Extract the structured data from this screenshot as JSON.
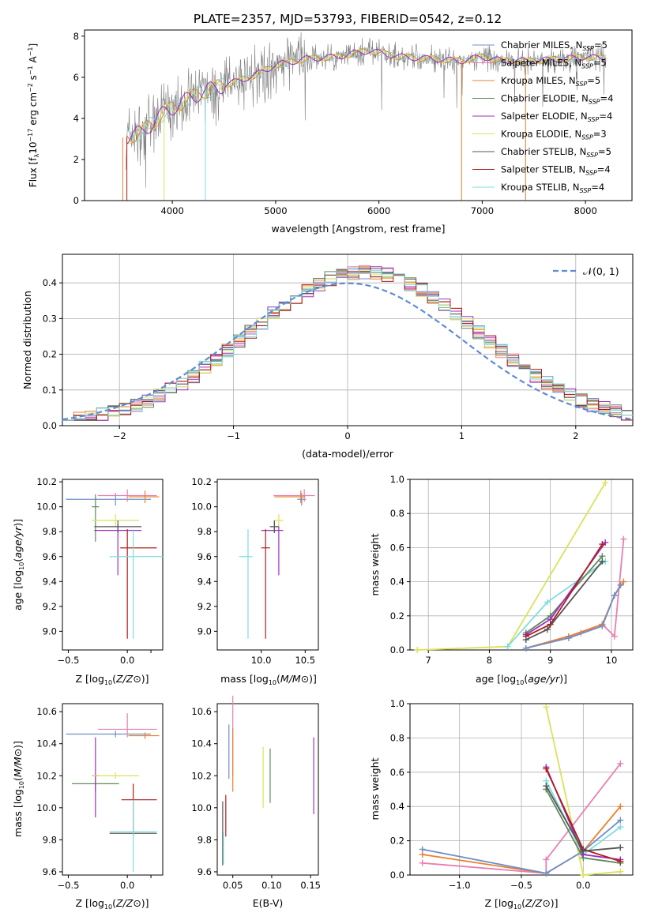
{
  "title": "PLATE=2357, MJD=53793, FIBERID=0542, z=0.12",
  "models": [
    {
      "name": "Chabrier MILES",
      "nssp": "5",
      "color": "#6f8fc8"
    },
    {
      "name": "Salpeter MILES",
      "nssp": "5",
      "color": "#e87fb0"
    },
    {
      "name": "Kroupa MILES",
      "nssp": "5",
      "color": "#e8802c"
    },
    {
      "name": "Chabrier ELODIE",
      "nssp": "4",
      "color": "#5d8a5b"
    },
    {
      "name": "Salpeter ELODIE",
      "nssp": "4",
      "color": "#9b30c0"
    },
    {
      "name": "Kroupa ELODIE",
      "nssp": "3",
      "color": "#d9e35a"
    },
    {
      "name": "Chabrier STELIB",
      "nssp": "5",
      "color": "#555555"
    },
    {
      "name": "Salpeter STELIB",
      "nssp": "4",
      "color": "#b01c1c"
    },
    {
      "name": "Kroupa STELIB",
      "nssp": "4",
      "color": "#7fdcdc"
    }
  ],
  "nssp_prefix": "N",
  "nssp_sub": "SSP",
  "chart_data": [
    {
      "id": "spectrum",
      "type": "line",
      "xlabel": "wavelength [Angstrom, rest frame]",
      "ylabel_parts": [
        "Flux [f",
        "λ",
        "10",
        "−17",
        " erg cm",
        "−2",
        " s",
        "−1",
        " A",
        "−1",
        "]"
      ],
      "xlim": [
        3150,
        8450
      ],
      "ylim": [
        0,
        8.3
      ],
      "xticks": [
        4000,
        5000,
        6000,
        7000,
        8000
      ],
      "yticks": [
        0,
        2,
        4,
        6,
        8
      ],
      "continuum_x": [
        3550,
        3700,
        3900,
        4100,
        4300,
        4500,
        4800,
        5000,
        5300,
        5600,
        5900,
        6200,
        6500,
        6800,
        7000,
        7200,
        7500,
        7800,
        8000,
        8200
      ],
      "continuum_y": [
        3.1,
        3.3,
        4.2,
        4.8,
        5.3,
        5.6,
        6.1,
        6.6,
        6.9,
        7.0,
        7.3,
        7.0,
        6.9,
        6.8,
        7.0,
        6.8,
        6.8,
        6.9,
        7.0,
        6.9
      ]
    },
    {
      "id": "residuals",
      "type": "histogram",
      "xlabel": "(data-model)/error",
      "ylabel": "Normed distribution",
      "xlim": [
        -2.5,
        2.5
      ],
      "ylim": [
        0,
        0.48
      ],
      "xticks": [
        -2,
        -1,
        0,
        1,
        2
      ],
      "xtick_labels": [
        "−2",
        "−1",
        "0",
        "1",
        "2"
      ],
      "yticks": [
        0,
        0.1,
        0.2,
        0.3,
        0.4
      ],
      "ytick_labels": [
        "0.0",
        "0.1",
        "0.2",
        "0.3",
        "0.4"
      ],
      "gaussian_label": "𝒩(0, 1)",
      "grid": true,
      "legend": "top-right"
    },
    {
      "id": "age_vs_Z",
      "type": "errorbar",
      "xlabel": "Z [log10(Z/Z⊙)]",
      "ylabel": "age  [log10(age/yr)]",
      "xlim": [
        -0.55,
        0.3
      ],
      "ylim": [
        8.85,
        10.22
      ],
      "xticks": [
        -0.5,
        0,
        0.2
      ],
      "xtick_labels": [
        "−0.5",
        "0.0",
        ""
      ],
      "yticks": [
        9.0,
        9.2,
        9.4,
        9.6,
        9.8,
        10.0,
        10.2
      ],
      "ytick_labels": [
        "9.0",
        "9.2",
        "9.4",
        "9.6",
        "9.8",
        "10.0",
        "10.2"
      ],
      "points": [
        {
          "model": 0,
          "x": -0.1,
          "xerr": [
            0.42,
            0.3
          ],
          "y": 10.06,
          "yerr": [
            0.05,
            0.05
          ]
        },
        {
          "model": 1,
          "x": 0.0,
          "xerr": [
            0.25,
            0.25
          ],
          "y": 10.09,
          "yerr": [
            0.05,
            0.05
          ]
        },
        {
          "model": 2,
          "x": 0.15,
          "xerr": [
            0.14,
            0.12
          ],
          "y": 10.08,
          "yerr": [
            0.05,
            0.05
          ]
        },
        {
          "model": 3,
          "x": -0.27,
          "xerr": [
            0.03,
            0.03
          ],
          "y": 10.0,
          "yerr": [
            0.28,
            0.1
          ]
        },
        {
          "model": 4,
          "x": -0.08,
          "xerr": [
            0.2,
            0.2
          ],
          "y": 9.81,
          "yerr": [
            0.36,
            0.05
          ]
        },
        {
          "model": 5,
          "x": -0.1,
          "xerr": [
            0.2,
            0.2
          ],
          "y": 9.89,
          "yerr": [
            0.05,
            0.05
          ]
        },
        {
          "model": 6,
          "x": -0.08,
          "xerr": [
            0.2,
            0.2
          ],
          "y": 9.84,
          "yerr": [
            0.05,
            0.05
          ]
        },
        {
          "model": 7,
          "x": 0.0,
          "xerr": [
            0.06,
            0.25
          ],
          "y": 9.67,
          "yerr": [
            0.73,
            0.15
          ]
        },
        {
          "model": 8,
          "x": 0.05,
          "xerr": [
            0.2,
            0.25
          ],
          "y": 9.6,
          "yerr": [
            0.66,
            0.22
          ]
        }
      ]
    },
    {
      "id": "age_vs_mass",
      "type": "errorbar",
      "xlabel": "mass [log10(M/M⊙)]",
      "ylabel": "",
      "xlim": [
        9.5,
        10.65
      ],
      "ylim": [
        8.85,
        10.22
      ],
      "xticks": [
        10.0,
        10.5
      ],
      "xtick_labels": [
        "10.0",
        "10.5"
      ],
      "yticks": [
        9.0,
        9.2,
        9.4,
        9.6,
        9.8,
        10.0,
        10.2
      ],
      "ytick_labels": [
        "9.0",
        "9.2",
        "9.4",
        "9.6",
        "9.8",
        "10.0",
        "10.2"
      ],
      "points": [
        {
          "model": 0,
          "x": 10.46,
          "xerr": [
            0.05,
            0.05
          ],
          "y": 10.06,
          "yerr": [
            0.05,
            0.05
          ]
        },
        {
          "model": 1,
          "x": 10.49,
          "xerr": [
            0.35,
            0.12
          ],
          "y": 10.09,
          "yerr": [
            0.05,
            0.05
          ]
        },
        {
          "model": 2,
          "x": 10.45,
          "xerr": [
            0.3,
            0.05
          ],
          "y": 10.08,
          "yerr": [
            0.05,
            0.05
          ]
        },
        {
          "model": 3,
          "x": 10.15,
          "xerr": [
            0.05,
            0.05
          ],
          "y": 9.84,
          "yerr": [
            0.05,
            0.05
          ]
        },
        {
          "model": 4,
          "x": 10.2,
          "xerr": [
            0.2,
            0.05
          ],
          "y": 9.81,
          "yerr": [
            0.36,
            0.05
          ]
        },
        {
          "model": 5,
          "x": 10.2,
          "xerr": [
            0.05,
            0.05
          ],
          "y": 9.89,
          "yerr": [
            0.05,
            0.05
          ]
        },
        {
          "model": 6,
          "x": 10.15,
          "xerr": [
            0.05,
            0.05
          ],
          "y": 9.84,
          "yerr": [
            0.05,
            0.05
          ]
        },
        {
          "model": 7,
          "x": 10.05,
          "xerr": [
            0.05,
            0.05
          ],
          "y": 9.67,
          "yerr": [
            0.73,
            0.15
          ]
        },
        {
          "model": 8,
          "x": 9.85,
          "xerr": [
            0.1,
            0.05
          ],
          "y": 9.6,
          "yerr": [
            0.66,
            0.22
          ]
        }
      ]
    },
    {
      "id": "massweight_vs_age",
      "type": "line",
      "xlabel": "age  [log10(age/yr)]",
      "ylabel": "mass weight",
      "xlim": [
        6.7,
        10.35
      ],
      "ylim": [
        0,
        1.0
      ],
      "xticks": [
        7,
        8,
        9,
        10
      ],
      "xtick_labels": [
        "7",
        "8",
        "9",
        "10"
      ],
      "yticks": [
        0,
        0.2,
        0.4,
        0.6,
        0.8,
        1.0
      ],
      "ytick_labels": [
        "0.0",
        "0.2",
        "0.4",
        "0.6",
        "0.8",
        "1.0"
      ],
      "grid": true,
      "series": [
        {
          "model": 5,
          "x": [
            6.82,
            8.3,
            9.9
          ],
          "y": [
            0.0,
            0.02,
            0.98
          ]
        },
        {
          "model": 1,
          "x": [
            8.6,
            9.5,
            9.85,
            10.05,
            10.2
          ],
          "y": [
            0.01,
            0.1,
            0.15,
            0.08,
            0.65
          ]
        },
        {
          "model": 2,
          "x": [
            8.6,
            9.3,
            9.85,
            10.05,
            10.2
          ],
          "y": [
            0.01,
            0.08,
            0.15,
            0.32,
            0.4
          ]
        },
        {
          "model": 0,
          "x": [
            8.6,
            9.3,
            9.85,
            10.05,
            10.15
          ],
          "y": [
            0.01,
            0.07,
            0.14,
            0.32,
            0.38
          ]
        },
        {
          "model": 8,
          "x": [
            8.3,
            8.95,
            9.9
          ],
          "y": [
            0.02,
            0.28,
            0.52
          ]
        },
        {
          "model": 3,
          "x": [
            8.6,
            9.0,
            9.85
          ],
          "y": [
            0.1,
            0.2,
            0.55
          ]
        },
        {
          "model": 4,
          "x": [
            8.6,
            9.0,
            9.9
          ],
          "y": [
            0.09,
            0.18,
            0.63
          ]
        },
        {
          "model": 7,
          "x": [
            8.6,
            9.0,
            9.85
          ],
          "y": [
            0.08,
            0.15,
            0.62
          ]
        },
        {
          "model": 6,
          "x": [
            8.6,
            8.95,
            9.85
          ],
          "y": [
            0.06,
            0.12,
            0.52
          ]
        }
      ]
    },
    {
      "id": "mass_vs_Z",
      "type": "errorbar",
      "xlabel": "Z [log10(Z/Z⊙)]",
      "ylabel": "mass [log10(M/M⊙)]",
      "xlim": [
        -0.55,
        0.3
      ],
      "ylim": [
        9.58,
        10.65
      ],
      "xticks": [
        -0.5,
        0,
        0.2
      ],
      "xtick_labels": [
        "−0.5",
        "0.0",
        ""
      ],
      "yticks": [
        9.6,
        9.8,
        10.0,
        10.2,
        10.4,
        10.6
      ],
      "ytick_labels": [
        "9.6",
        "9.8",
        "10.0",
        "10.2",
        "10.4",
        "10.6"
      ],
      "points": [
        {
          "model": 0,
          "x": -0.1,
          "xerr": [
            0.42,
            0.3
          ],
          "y": 10.46,
          "yerr": [
            0.02,
            0.02
          ]
        },
        {
          "model": 1,
          "x": 0.0,
          "xerr": [
            0.25,
            0.25
          ],
          "y": 10.49,
          "yerr": [
            0.05,
            0.1
          ]
        },
        {
          "model": 2,
          "x": 0.15,
          "xerr": [
            0.14,
            0.12
          ],
          "y": 10.45,
          "yerr": [
            0.02,
            0.02
          ]
        },
        {
          "model": 3,
          "x": -0.27,
          "xerr": [
            0.2,
            0.2
          ],
          "y": 10.15,
          "yerr": [
            0.05,
            0.05
          ]
        },
        {
          "model": 4,
          "x": -0.27,
          "xerr": [
            0.03,
            0.03
          ],
          "y": 10.2,
          "yerr": [
            0.26,
            0.24
          ]
        },
        {
          "model": 5,
          "x": -0.1,
          "xerr": [
            0.2,
            0.2
          ],
          "y": 10.2,
          "yerr": [
            0.02,
            0.02
          ]
        },
        {
          "model": 6,
          "x": 0.05,
          "xerr": [
            0.2,
            0.2
          ],
          "y": 9.84,
          "yerr": [
            0.02,
            0.02
          ]
        },
        {
          "model": 7,
          "x": 0.05,
          "xerr": [
            0.1,
            0.2
          ],
          "y": 10.05,
          "yerr": [
            0.2,
            0.1
          ]
        },
        {
          "model": 8,
          "x": 0.05,
          "xerr": [
            0.2,
            0.2
          ],
          "y": 9.85,
          "yerr": [
            0.25,
            0.2
          ]
        }
      ]
    },
    {
      "id": "mass_vs_EBV",
      "type": "errorbar",
      "xlabel": "E(B-V)",
      "ylabel": "",
      "xlim": [
        0.03,
        0.16
      ],
      "ylim": [
        9.58,
        10.65
      ],
      "xticks": [
        0.05,
        0.1,
        0.15
      ],
      "xtick_labels": [
        "0.05",
        "0.10",
        "0.15"
      ],
      "yticks": [
        9.6,
        9.8,
        10.0,
        10.2,
        10.4,
        10.6
      ],
      "ytick_labels": [
        "9.6",
        "9.8",
        "10.0",
        "10.2",
        "10.4",
        "10.6"
      ],
      "points": [
        {
          "model": 0,
          "x": 0.045,
          "xerr": [
            0,
            0
          ],
          "y": 10.35,
          "yerr": [
            0.17,
            0.17
          ]
        },
        {
          "model": 1,
          "x": 0.05,
          "xerr": [
            0,
            0
          ],
          "y": 10.45,
          "yerr": [
            0.25,
            0.25
          ]
        },
        {
          "model": 2,
          "x": 0.05,
          "xerr": [
            0,
            0
          ],
          "y": 10.3,
          "yerr": [
            0.2,
            0.2
          ]
        },
        {
          "model": 3,
          "x": 0.098,
          "xerr": [
            0,
            0
          ],
          "y": 10.2,
          "yerr": [
            0.17,
            0.17
          ]
        },
        {
          "model": 4,
          "x": 0.154,
          "xerr": [
            0,
            0
          ],
          "y": 10.2,
          "yerr": [
            0.24,
            0.24
          ]
        },
        {
          "model": 5,
          "x": 0.089,
          "xerr": [
            0,
            0
          ],
          "y": 10.19,
          "yerr": [
            0.19,
            0.19
          ]
        },
        {
          "model": 6,
          "x": 0.037,
          "xerr": [
            0,
            0
          ],
          "y": 9.84,
          "yerr": [
            0.2,
            0.2
          ]
        },
        {
          "model": 7,
          "x": 0.041,
          "xerr": [
            0,
            0
          ],
          "y": 9.95,
          "yerr": [
            0.13,
            0.13
          ]
        },
        {
          "model": 8,
          "x": 0.038,
          "xerr": [
            0,
            0
          ],
          "y": 9.75,
          "yerr": [
            0.1,
            0.1
          ]
        }
      ]
    },
    {
      "id": "massweight_vs_Z",
      "type": "line",
      "xlabel": "Z [log10(Z/Z⊙)]",
      "ylabel": "mass weight",
      "xlim": [
        -1.4,
        0.4
      ],
      "ylim": [
        0,
        1.0
      ],
      "xticks": [
        -1.0,
        -0.5,
        0.0
      ],
      "xtick_labels": [
        "−1.0",
        "−0.5",
        "0.0"
      ],
      "yticks": [
        0,
        0.2,
        0.4,
        0.6,
        0.8,
        1.0
      ],
      "ytick_labels": [
        "0.0",
        "0.2",
        "0.4",
        "0.6",
        "0.8",
        "1.0"
      ],
      "grid": true,
      "series": [
        {
          "model": 5,
          "x": [
            -0.3,
            0.0,
            0.3
          ],
          "y": [
            0.98,
            0.0,
            0.02
          ]
        },
        {
          "model": 1,
          "x": [
            -1.3,
            -0.3,
            -0.3,
            0.3
          ],
          "y": [
            0.07,
            0.01,
            0.09,
            0.65
          ]
        },
        {
          "model": 2,
          "x": [
            -1.3,
            -0.3,
            0.0,
            0.3
          ],
          "y": [
            0.12,
            0.01,
            0.14,
            0.4
          ]
        },
        {
          "model": 0,
          "x": [
            -1.3,
            -0.3,
            0.0,
            0.3
          ],
          "y": [
            0.15,
            0.01,
            0.14,
            0.32
          ]
        },
        {
          "model": 8,
          "x": [
            -0.3,
            0.0,
            0.3
          ],
          "y": [
            0.55,
            0.12,
            0.28
          ]
        },
        {
          "model": 3,
          "x": [
            -0.3,
            0.0,
            0.3
          ],
          "y": [
            0.5,
            0.1,
            0.07
          ]
        },
        {
          "model": 4,
          "x": [
            -0.3,
            0.0,
            0.3
          ],
          "y": [
            0.63,
            0.12,
            0.09
          ]
        },
        {
          "model": 7,
          "x": [
            -0.3,
            0.0,
            0.3
          ],
          "y": [
            0.62,
            0.15,
            0.08
          ]
        },
        {
          "model": 6,
          "x": [
            -0.3,
            0.0,
            0.3
          ],
          "y": [
            0.52,
            0.14,
            0.16
          ]
        }
      ]
    }
  ]
}
